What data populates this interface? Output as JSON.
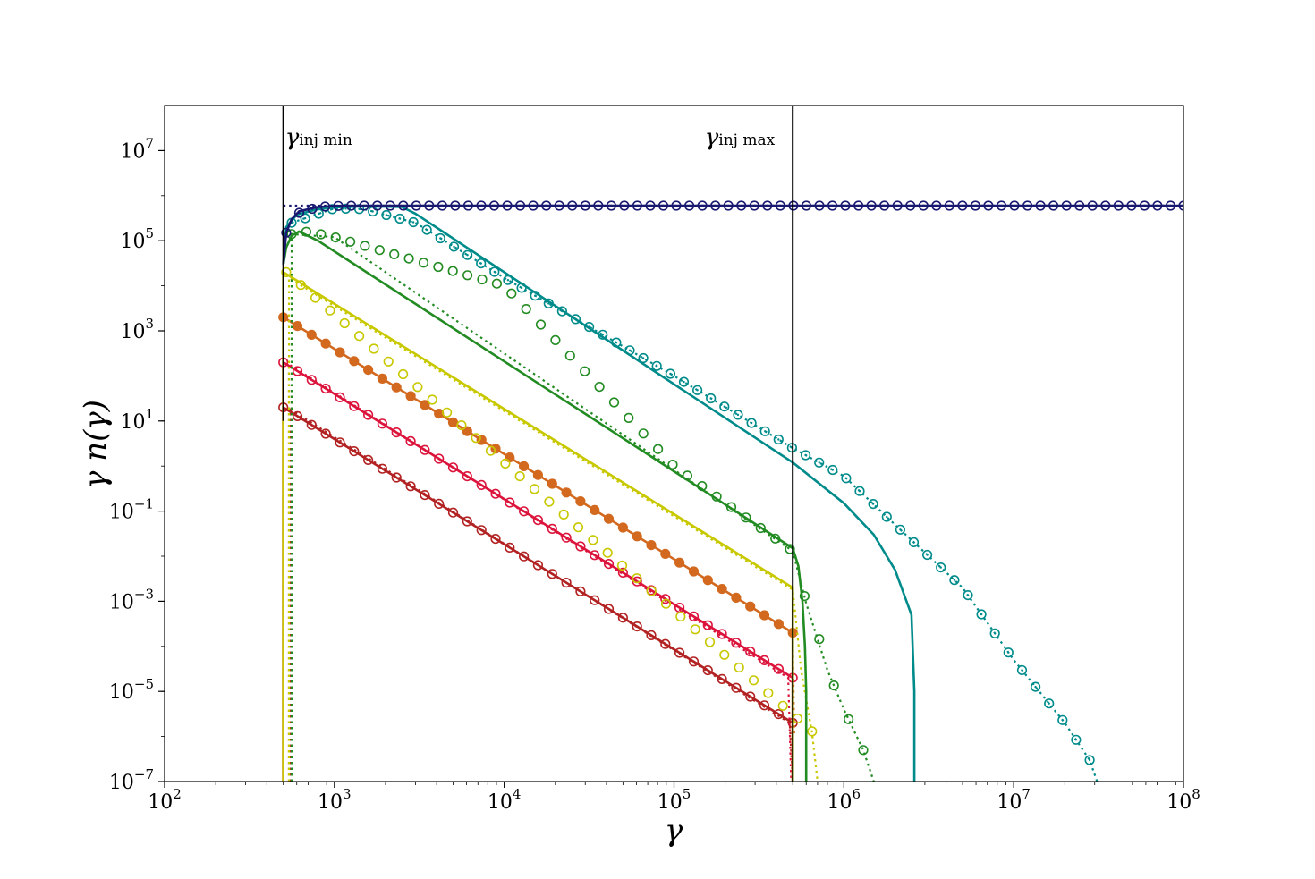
{
  "chart_data": {
    "type": "line",
    "xscale": "log",
    "yscale": "log",
    "xlim": [
      100,
      100000000
    ],
    "ylim": [
      1e-07,
      100000000
    ],
    "xlabel": "γ",
    "ylabel": "γ n(γ)",
    "x_ticks": [
      {
        "value": 100,
        "base": "10",
        "exp": "2"
      },
      {
        "value": 1000,
        "base": "10",
        "exp": "3"
      },
      {
        "value": 10000,
        "base": "10",
        "exp": "4"
      },
      {
        "value": 100000,
        "base": "10",
        "exp": "5"
      },
      {
        "value": 1000000,
        "base": "10",
        "exp": "6"
      },
      {
        "value": 10000000,
        "base": "10",
        "exp": "7"
      },
      {
        "value": 100000000,
        "base": "10",
        "exp": "8"
      }
    ],
    "y_ticks": [
      {
        "value": 1e-07,
        "base": "10",
        "exp": "−7"
      },
      {
        "value": 1e-05,
        "base": "10",
        "exp": "−5"
      },
      {
        "value": 0.001,
        "base": "10",
        "exp": "−3"
      },
      {
        "value": 0.1,
        "base": "10",
        "exp": "−1"
      },
      {
        "value": 10,
        "base": "10",
        "exp": "1"
      },
      {
        "value": 1000,
        "base": "10",
        "exp": "3"
      },
      {
        "value": 100000,
        "base": "10",
        "exp": "5"
      },
      {
        "value": 10000000,
        "base": "10",
        "exp": "7"
      }
    ],
    "vlines": [
      {
        "x": 500,
        "label_base": "γ",
        "label_sub": "inj min",
        "label_side": "right"
      },
      {
        "x": 500000,
        "label_base": "γ",
        "label_sub": "inj max",
        "label_side": "left"
      }
    ],
    "series": [
      {
        "color": "#b22222",
        "solid": {
          "segments": [
            {
              "x": [
                500,
                500000
              ],
              "y": [
                20,
                2e-06
              ]
            }
          ],
          "drop_at": 500000,
          "rise_at": 500
        },
        "markers": {
          "style": "open",
          "x": [
            500,
            500000
          ],
          "y": [
            20,
            2e-06
          ],
          "count": 37
        },
        "dotted": {
          "x": [
            550,
            550,
            480000,
            500000
          ],
          "y": [
            1e-07,
            18,
            2e-06,
            1e-07
          ]
        }
      },
      {
        "color": "#dc143c",
        "solid": {
          "segments": [
            {
              "x": [
                500,
                500000
              ],
              "y": [
                200,
                2e-05
              ]
            }
          ],
          "drop_at": 500000,
          "rise_at": 500
        },
        "markers": {
          "style": "open",
          "x": [
            500,
            500000
          ],
          "y": [
            200,
            2e-05
          ],
          "count": 37
        },
        "dotted": {
          "x": [
            540,
            540,
            470000,
            490000
          ],
          "y": [
            1e-07,
            180,
            2e-05,
            1e-07
          ]
        }
      },
      {
        "color": "#d2691e",
        "solid": {
          "segments": [
            {
              "x": [
                500,
                500000
              ],
              "y": [
                2000,
                0.0002
              ]
            }
          ],
          "drop_at": 500000,
          "rise_at": 500
        },
        "markers": {
          "style": "filled",
          "x": [
            500,
            500000
          ],
          "y": [
            2000,
            0.0002
          ],
          "count": 37
        },
        "dotted": {
          "x": [
            500,
            500000,
            510000
          ],
          "y": [
            2000,
            0.0002,
            1e-06
          ]
        }
      },
      {
        "color": "#c8c800",
        "solid": {
          "segments": [
            {
              "x": [
                500,
                500000
              ],
              "y": [
                20000,
                0.002
              ]
            }
          ],
          "drop_at": 500000,
          "rise_at": 500
        },
        "markers": {
          "style": "open",
          "x": [
            520,
            650000
          ],
          "y": [
            20000,
            1.3e-06
          ],
          "count": 37
        },
        "dotted": {
          "x": [
            540,
            540,
            500000,
            560000,
            650000,
            700000
          ],
          "y": [
            1e-07,
            15000,
            0.0018,
            3e-05,
            1.2e-06,
            1e-07
          ]
        }
      },
      {
        "color": "#228b22",
        "solid": {
          "x": [
            500,
            520,
            560,
            620,
            800,
            500000,
            540000,
            570000,
            590000,
            600000,
            600000
          ],
          "y": [
            30000,
            70000,
            130000,
            160000,
            100000,
            0.015,
            0.006,
            0.001,
            0.0001,
            1e-05,
            1e-07
          ]
        },
        "markers": {
          "style": "open",
          "x": [
            560,
            700,
            1000,
            10000,
            100000,
            500000,
            550000,
            600000,
            700000,
            800000,
            1000000,
            1300000
          ],
          "y": [
            140000,
            160000,
            120000,
            10000,
            1.0,
            0.013,
            0.004,
            0.0009,
            0.0002,
            3e-05,
            4e-06,
            5e-07
          ],
          "count": 40
        },
        "dotted": {
          "x": [
            560,
            560,
            1000,
            500000,
            600000,
            800000,
            1000000,
            1300000,
            1500000
          ],
          "y": [
            1e-07,
            140000,
            120000,
            0.013,
            0.0009,
            3e-05,
            4e-06,
            5e-07,
            1e-07
          ]
        }
      },
      {
        "color": "#008b8b",
        "solid": {
          "x": [
            500,
            520,
            600,
            800,
            1000,
            1500,
            2500,
            3000,
            500000,
            1000000,
            1500000,
            2000000,
            2500000,
            2600000,
            2600000
          ],
          "y": [
            30000,
            200000,
            380000,
            500000,
            550000,
            580000,
            560000,
            400000,
            1.2,
            0.15,
            0.03,
            0.005,
            0.0005,
            1e-05,
            1e-07
          ]
        },
        "markers": {
          "style": "open-dot",
          "x": [
            560,
            1000,
            1500,
            3000,
            10000,
            100000,
            500000,
            1000000,
            2000000,
            5000000,
            10000000,
            20000000,
            28000000
          ],
          "y": [
            250000,
            520000,
            500000,
            250000,
            15000,
            100,
            2.5,
            0.6,
            0.05,
            0.002,
            5e-05,
            2e-06,
            3e-07
          ],
          "count": 60
        },
        "dotted": {
          "x": [
            560,
            1000,
            1500,
            3000,
            10000,
            100000,
            500000,
            1000000,
            2000000,
            5000000,
            10000000,
            20000000,
            28000000,
            31000000
          ],
          "y": [
            250000,
            520000,
            500000,
            250000,
            15000,
            100,
            2.5,
            0.6,
            0.05,
            0.002,
            5e-05,
            2e-06,
            3e-07,
            1e-07
          ]
        }
      },
      {
        "color": "#191970",
        "solid": {
          "x": [
            500,
            520,
            560,
            620,
            800,
            1000,
            1500,
            2000,
            100000000
          ],
          "y": [
            30000,
            150000,
            300000,
            450000,
            560000,
            590000,
            600000,
            600000,
            600000
          ]
        },
        "markers": {
          "style": "open-dot",
          "x": [
            520,
            600,
            800,
            1000,
            1500,
            100000000
          ],
          "y": [
            150000,
            400000,
            560000,
            590000,
            600000,
            600000
          ],
          "count": 70
        },
        "dotted": {
          "x": [
            500,
            100000000
          ],
          "y": [
            600000,
            600000
          ]
        }
      }
    ]
  }
}
